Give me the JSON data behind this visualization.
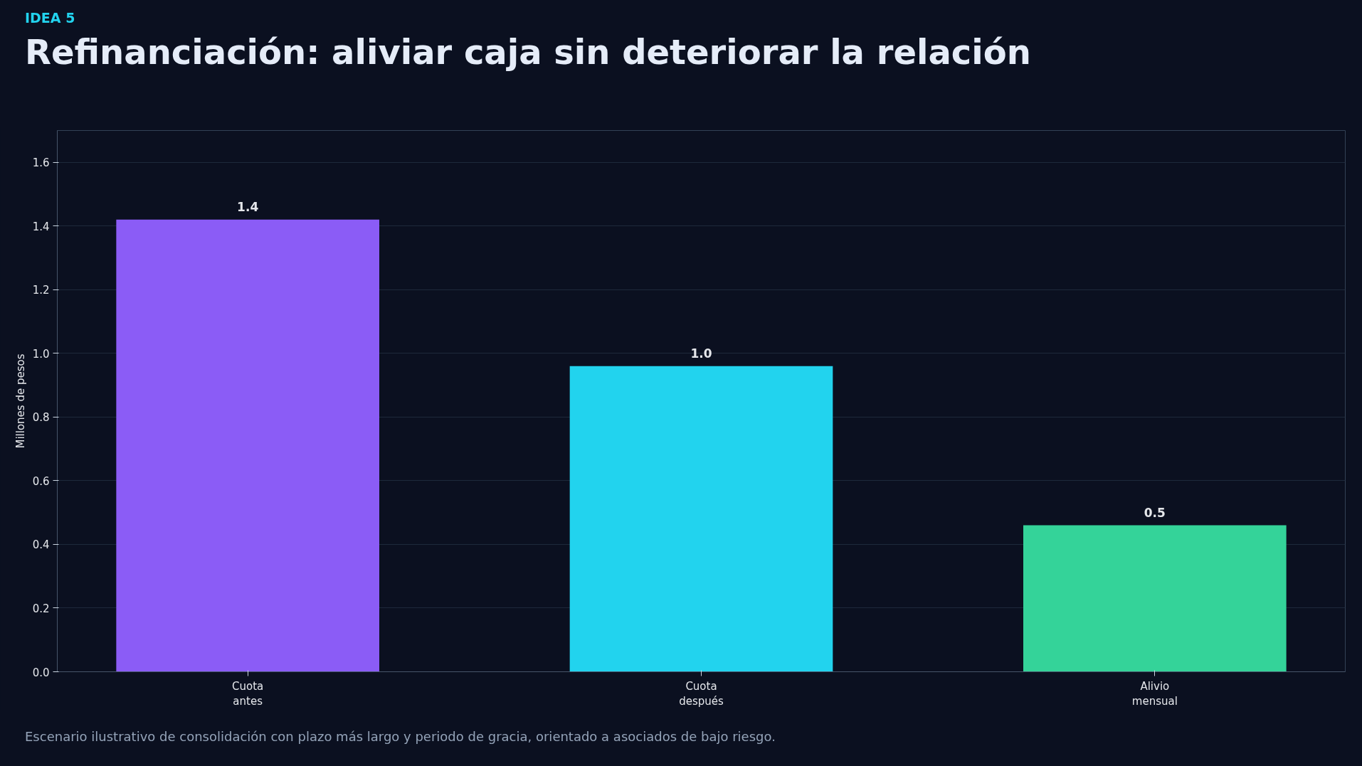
{
  "chart_data": {
    "type": "bar",
    "subtitle": "IDEA 5",
    "title": "Refinanciación: aliviar caja sin deteriorar la relación",
    "categories": [
      "Cuota\nantes",
      "Cuota\ndespués",
      "Alivio\nmensual"
    ],
    "values": [
      1.42,
      0.96,
      0.46
    ],
    "colors": [
      "#8b5cf6",
      "#22d3ee",
      "#34d399"
    ],
    "value_labels": [
      "1.4",
      "1.0",
      "0.5"
    ],
    "ylabel": "Millones de pesos",
    "ylim": [
      0,
      1.7
    ],
    "yticks": [
      {
        "value": 0,
        "label": "0.0"
      },
      0.2,
      0.4,
      0.6,
      0.8,
      {
        "value": 1,
        "label": "1.0"
      },
      1.2,
      1.4,
      1.6
    ],
    "grid": "y",
    "annotations": [
      "Escenario ilustrativo de consolidación con plazo más largo y periodo de gracia, orientado a asociados de bajo riesgo."
    ]
  }
}
